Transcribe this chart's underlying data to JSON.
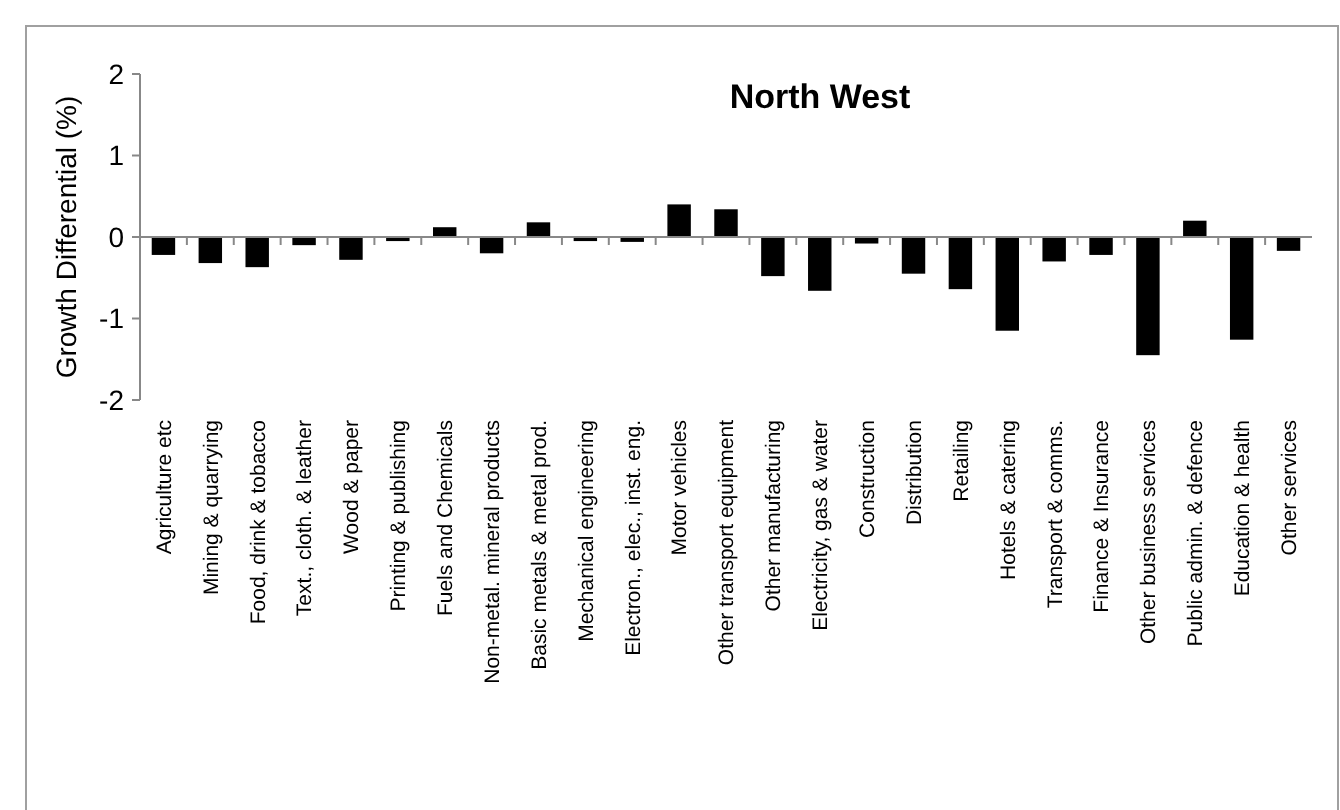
{
  "chart_data": {
    "type": "bar",
    "title": "North West",
    "ylabel": "Growth Differential (%)",
    "categories": [
      "Agriculture etc",
      "Mining & quarrying",
      "Food, drink & tobacco",
      "Text., cloth. & leather",
      "Wood & paper",
      "Printing & publishing",
      "Fuels and Chemicals",
      "Non-metal. mineral products",
      "Basic metals & metal prod.",
      "Mechanical engineering",
      "Electron., elec., inst. eng.",
      "Motor vehicles",
      "Other transport equipment",
      "Other manufacturing",
      "Electricity, gas & water",
      "Construction",
      "Distribution",
      "Retailing",
      "Hotels & catering",
      "Transport & comms.",
      "Finance & Insurance",
      "Other business services",
      "Public admin. & defence",
      "Education & health",
      "Other services"
    ],
    "values": [
      -0.22,
      -0.32,
      -0.37,
      -0.1,
      -0.28,
      -0.05,
      0.12,
      -0.2,
      0.18,
      -0.05,
      -0.06,
      0.4,
      0.34,
      -0.48,
      -0.66,
      -0.08,
      -0.45,
      -0.64,
      -1.15,
      -0.3,
      -0.22,
      -1.45,
      0.2,
      -1.26,
      -0.17
    ],
    "color": "#000000",
    "ylim": [
      -2,
      2
    ],
    "yticks": [
      -2,
      -1,
      0,
      1,
      2
    ]
  }
}
